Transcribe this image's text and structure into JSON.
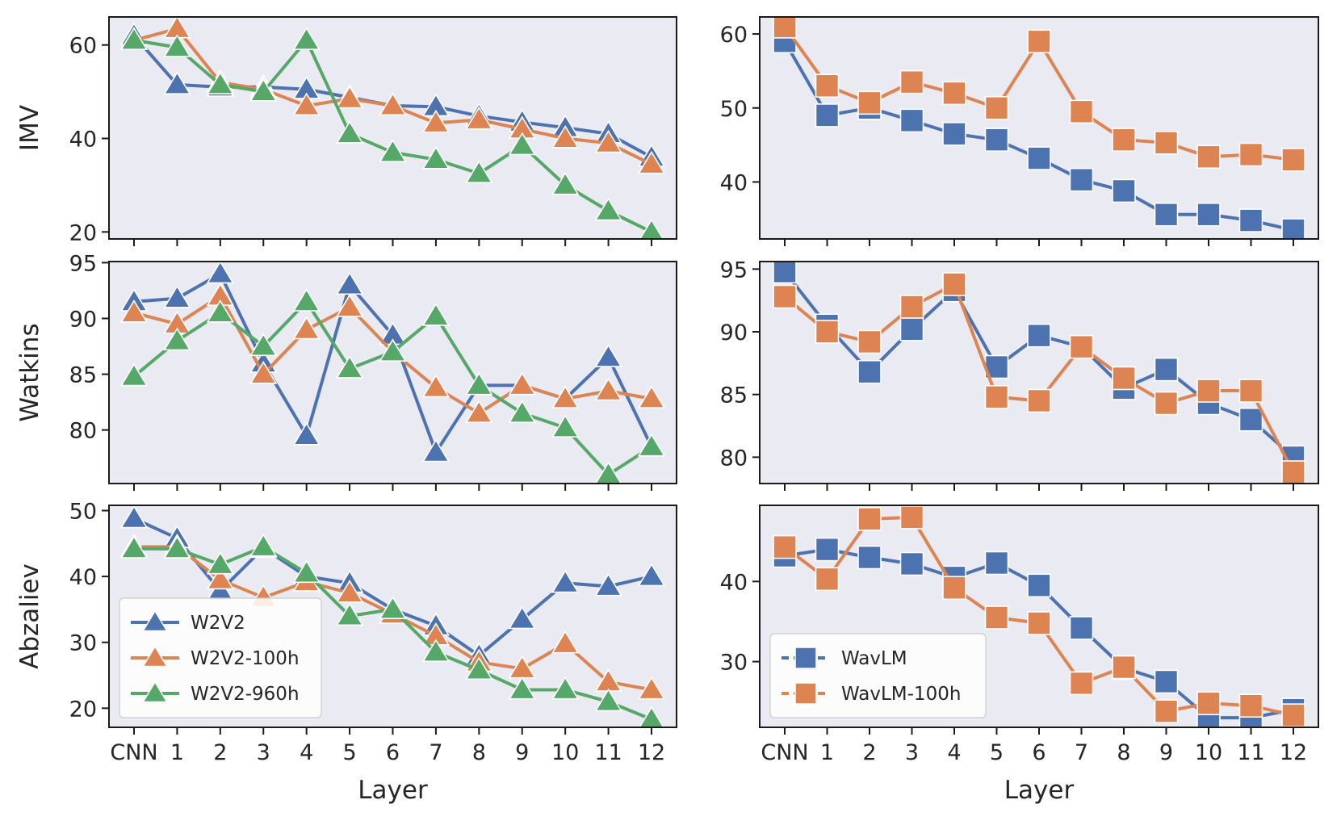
{
  "figure": {
    "x_tick_labels": [
      "CNN",
      "1",
      "2",
      "3",
      "4",
      "5",
      "6",
      "7",
      "8",
      "9",
      "10",
      "11",
      "12"
    ],
    "x_axis_label": "Layer",
    "row_labels": [
      "IMV",
      "Watkins",
      "Abzaliev"
    ],
    "colors": {
      "blue": "#4c72b0",
      "orange": "#dd8452",
      "green": "#55a868",
      "panel_bg": "#eaeaf2"
    }
  },
  "chart_data": [
    {
      "type": "line",
      "marker": "triangle",
      "row": "IMV",
      "column": "left",
      "xlabel": "",
      "ylabel": "IMV",
      "ylim": [
        18.5,
        66
      ],
      "yticks": [
        20,
        40,
        60
      ],
      "show_x_tick_labels": false,
      "categories": [
        "CNN",
        "1",
        "2",
        "3",
        "4",
        "5",
        "6",
        "7",
        "8",
        "9",
        "10",
        "11",
        "12"
      ],
      "series": [
        {
          "name": "W2V2",
          "color": "#4c72b0",
          "values": [
            62.0,
            51.5,
            51.0,
            51.0,
            50.5,
            48.8,
            47.0,
            46.8,
            44.8,
            43.5,
            42.3,
            41.0,
            36.0
          ]
        },
        {
          "name": "W2V2-100h",
          "color": "#dd8452",
          "values": [
            61.0,
            63.5,
            52.0,
            50.5,
            47.0,
            48.5,
            47.0,
            43.3,
            44.0,
            42.0,
            40.0,
            39.0,
            34.5
          ]
        },
        {
          "name": "W2V2-960h",
          "color": "#55a868",
          "values": [
            61.0,
            59.5,
            51.5,
            50.0,
            61.0,
            41.0,
            37.0,
            35.5,
            32.5,
            38.5,
            30.0,
            24.5,
            20.0
          ]
        }
      ]
    },
    {
      "type": "line",
      "marker": "square",
      "row": "IMV",
      "column": "right",
      "xlabel": "",
      "ylabel": "",
      "ylim": [
        32.3,
        62.3
      ],
      "yticks": [
        40,
        50,
        60
      ],
      "show_x_tick_labels": false,
      "categories": [
        "CNN",
        "1",
        "2",
        "3",
        "4",
        "5",
        "6",
        "7",
        "8",
        "9",
        "10",
        "11",
        "12"
      ],
      "series": [
        {
          "name": "WavLM",
          "color": "#4c72b0",
          "values": [
            59.0,
            49.0,
            50.0,
            48.3,
            46.5,
            45.7,
            43.2,
            40.3,
            38.8,
            35.6,
            35.6,
            34.8,
            33.5
          ]
        },
        {
          "name": "WavLM-100h",
          "color": "#dd8452",
          "values": [
            61.0,
            53.0,
            50.7,
            53.5,
            52.0,
            50.0,
            59.0,
            49.5,
            45.7,
            45.3,
            43.4,
            43.7,
            43.0
          ]
        }
      ]
    },
    {
      "type": "line",
      "marker": "triangle",
      "row": "Watkins",
      "column": "left",
      "xlabel": "",
      "ylabel": "Watkins",
      "ylim": [
        75.2,
        95.1
      ],
      "yticks": [
        80,
        85,
        90,
        95
      ],
      "show_x_tick_labels": false,
      "categories": [
        "CNN",
        "1",
        "2",
        "3",
        "4",
        "5",
        "6",
        "7",
        "8",
        "9",
        "10",
        "11",
        "12"
      ],
      "series": [
        {
          "name": "W2V2",
          "color": "#4c72b0",
          "values": [
            91.5,
            91.8,
            94.0,
            86.0,
            79.5,
            93.0,
            88.5,
            78.0,
            84.0,
            84.0,
            82.8,
            86.5,
            78.5
          ]
        },
        {
          "name": "W2V2-100h",
          "color": "#dd8452",
          "values": [
            90.5,
            89.5,
            92.0,
            85.0,
            89.0,
            91.0,
            87.0,
            83.8,
            81.5,
            84.0,
            82.8,
            83.5,
            82.8
          ]
        },
        {
          "name": "W2V2-960h",
          "color": "#55a868",
          "values": [
            84.8,
            88.0,
            90.5,
            87.5,
            91.5,
            85.5,
            87.0,
            90.2,
            84.0,
            81.5,
            80.2,
            76.0,
            78.5
          ]
        }
      ]
    },
    {
      "type": "line",
      "marker": "square",
      "row": "Watkins",
      "column": "right",
      "xlabel": "",
      "ylabel": "",
      "ylim": [
        77.9,
        95.6
      ],
      "yticks": [
        80,
        85,
        90,
        95
      ],
      "show_x_tick_labels": false,
      "categories": [
        "CNN",
        "1",
        "2",
        "3",
        "4",
        "5",
        "6",
        "7",
        "8",
        "9",
        "10",
        "11",
        "12"
      ],
      "series": [
        {
          "name": "WavLM",
          "color": "#4c72b0",
          "values": [
            94.8,
            90.5,
            86.8,
            90.2,
            93.3,
            87.2,
            89.7,
            88.8,
            85.5,
            87.0,
            84.3,
            83.0,
            80.0
          ]
        },
        {
          "name": "WavLM-100h",
          "color": "#dd8452",
          "values": [
            92.8,
            90.0,
            89.2,
            92.0,
            93.8,
            84.8,
            84.5,
            88.8,
            86.3,
            84.3,
            85.3,
            85.3,
            78.8
          ]
        }
      ]
    },
    {
      "type": "line",
      "marker": "triangle",
      "row": "Abzaliev",
      "column": "left",
      "xlabel": "Layer",
      "ylabel": "Abzaliev",
      "ylim": [
        17.1,
        50.8
      ],
      "yticks": [
        20,
        30,
        40,
        50
      ],
      "show_x_tick_labels": true,
      "categories": [
        "CNN",
        "1",
        "2",
        "3",
        "4",
        "5",
        "6",
        "7",
        "8",
        "9",
        "10",
        "11",
        "12"
      ],
      "series": [
        {
          "name": "W2V2",
          "color": "#4c72b0",
          "values": [
            48.8,
            45.8,
            37.8,
            44.3,
            40.0,
            39.0,
            35.0,
            32.5,
            28.0,
            33.5,
            39.0,
            38.5,
            40.0
          ]
        },
        {
          "name": "W2V2-100h",
          "color": "#dd8452",
          "values": [
            44.5,
            44.5,
            39.5,
            36.8,
            39.2,
            37.5,
            34.3,
            31.0,
            27.0,
            26.0,
            29.8,
            24.0,
            22.8
          ]
        },
        {
          "name": "W2V2-960h",
          "color": "#55a868",
          "values": [
            44.2,
            44.2,
            41.8,
            44.5,
            40.5,
            34.0,
            35.0,
            28.5,
            25.8,
            22.8,
            22.8,
            21.0,
            18.3
          ]
        }
      ]
    },
    {
      "type": "line",
      "marker": "square",
      "row": "Abzaliev",
      "column": "right",
      "xlabel": "Layer",
      "ylabel": "",
      "ylim": [
        21.8,
        49.5
      ],
      "yticks": [
        30,
        40
      ],
      "show_x_tick_labels": true,
      "categories": [
        "CNN",
        "1",
        "2",
        "3",
        "4",
        "5",
        "6",
        "7",
        "8",
        "9",
        "10",
        "11",
        "12"
      ],
      "series": [
        {
          "name": "WavLM",
          "color": "#4c72b0",
          "values": [
            43.2,
            44.0,
            43.0,
            42.2,
            40.5,
            42.3,
            39.5,
            34.2,
            29.2,
            27.5,
            23.0,
            23.0,
            24.0
          ]
        },
        {
          "name": "WavLM-100h",
          "color": "#dd8452",
          "values": [
            44.3,
            40.3,
            47.8,
            48.0,
            39.2,
            35.5,
            34.8,
            27.3,
            29.3,
            23.8,
            24.8,
            24.5,
            23.3
          ]
        }
      ]
    }
  ]
}
